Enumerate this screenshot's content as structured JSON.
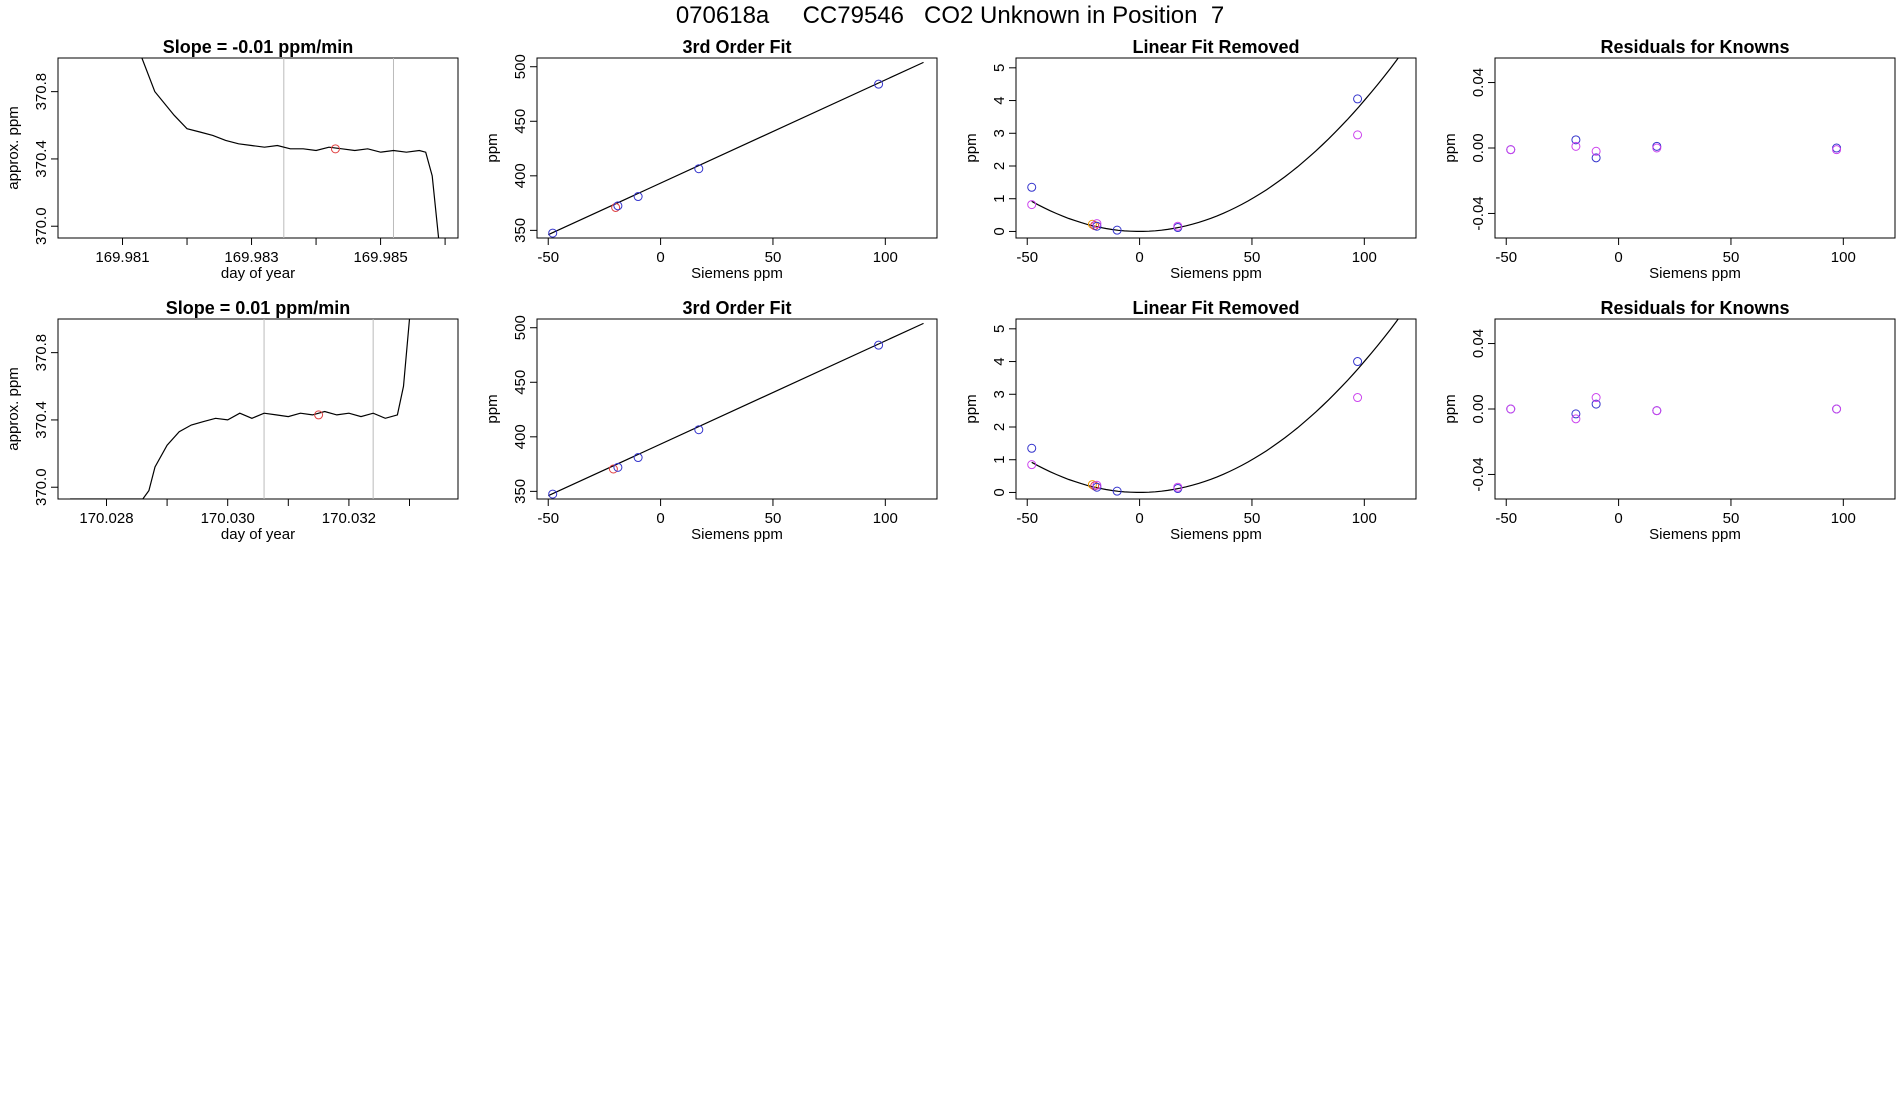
{
  "figure_header": "070618a     CC79546   CO2 Unknown in Position  7",
  "colors": {
    "line": "#000000",
    "point_blue": "#3333cc",
    "point_red": "#e04040",
    "point_magenta": "#cc44ee",
    "point_orange": "#ee9900",
    "vline": "#bbbbbb"
  },
  "chart_data": [
    {
      "type": "line",
      "title": "Slope =  -0.01  ppm/min",
      "xlabel": "day of year",
      "ylabel": "approx. ppm",
      "xlim": [
        169.98,
        169.9862
      ],
      "ylim": [
        369.93,
        371.0
      ],
      "xticks": [
        "169.981",
        "169.983",
        "169.985"
      ],
      "xtick_values": [
        169.981,
        169.983,
        169.985
      ],
      "xtick_minor": [
        169.982,
        169.984,
        169.986
      ],
      "yticks": [
        "370.0",
        "370.4",
        "370.8"
      ],
      "ytick_values": [
        370.0,
        370.4,
        370.8
      ],
      "vlines": [
        169.9835,
        169.9852
      ],
      "marker": {
        "x": 169.9843,
        "y": 370.46,
        "color": "red"
      },
      "series": {
        "x": [
          169.9813,
          169.9815,
          169.9818,
          169.982,
          169.9822,
          169.9824,
          169.9826,
          169.9828,
          169.983,
          169.9832,
          169.9834,
          169.9836,
          169.9838,
          169.984,
          169.9842,
          169.9844,
          169.9846,
          169.9848,
          169.985,
          169.9852,
          169.9854,
          169.9856,
          169.9857,
          169.9858,
          169.9859
        ],
        "y": [
          371.0,
          370.8,
          370.66,
          370.58,
          370.56,
          370.54,
          370.51,
          370.49,
          370.48,
          370.47,
          370.48,
          370.46,
          370.46,
          370.45,
          370.47,
          370.46,
          370.45,
          370.46,
          370.44,
          370.45,
          370.44,
          370.45,
          370.44,
          370.3,
          369.93
        ]
      }
    },
    {
      "type": "scatter",
      "title": "3rd Order Fit",
      "xlabel": "Siemens ppm",
      "ylabel": "ppm",
      "xlim": [
        -55,
        123
      ],
      "ylim": [
        343,
        508
      ],
      "xticks": [
        "-50",
        "0",
        "50",
        "100"
      ],
      "xtick_values": [
        -50,
        0,
        50,
        100
      ],
      "yticks": [
        "350",
        "400",
        "450",
        "500"
      ],
      "ytick_values": [
        350,
        400,
        450,
        500
      ],
      "curve": {
        "x": [
          -50,
          117
        ],
        "y": [
          346,
          504
        ]
      },
      "points": [
        {
          "x": -48,
          "y": 347.5,
          "color": "blue"
        },
        {
          "x": -20,
          "y": 371.0,
          "color": "red"
        },
        {
          "x": -19,
          "y": 372.5,
          "color": "blue"
        },
        {
          "x": -10,
          "y": 381.0,
          "color": "blue"
        },
        {
          "x": 17,
          "y": 406.5,
          "color": "blue"
        },
        {
          "x": 97,
          "y": 484.0,
          "color": "blue"
        }
      ]
    },
    {
      "type": "scatter",
      "title": "Linear Fit Removed",
      "xlabel": "Siemens ppm",
      "ylabel": "ppm",
      "xlim": [
        -55,
        123
      ],
      "ylim": [
        -0.2,
        5.3
      ],
      "xticks": [
        "-50",
        "0",
        "50",
        "100"
      ],
      "xtick_values": [
        -50,
        0,
        50,
        100
      ],
      "yticks": [
        "0",
        "1",
        "2",
        "3",
        "4",
        "5"
      ],
      "ytick_values": [
        0,
        1,
        2,
        3,
        4,
        5
      ],
      "curve_coef": [
        0,
        0,
        0.0004
      ],
      "curve_range": [
        -48,
        117
      ],
      "points": [
        {
          "x": -48,
          "y": 1.35,
          "color": "blue"
        },
        {
          "x": -48,
          "y": 0.82,
          "color": "magenta"
        },
        {
          "x": -21,
          "y": 0.22,
          "color": "orange"
        },
        {
          "x": -20,
          "y": 0.18,
          "color": "red"
        },
        {
          "x": -19,
          "y": 0.16,
          "color": "blue"
        },
        {
          "x": -19,
          "y": 0.24,
          "color": "magenta"
        },
        {
          "x": -10,
          "y": 0.04,
          "color": "blue"
        },
        {
          "x": 17,
          "y": 0.12,
          "color": "blue"
        },
        {
          "x": 17,
          "y": 0.16,
          "color": "magenta"
        },
        {
          "x": 97,
          "y": 4.05,
          "color": "blue"
        },
        {
          "x": 97,
          "y": 2.95,
          "color": "magenta"
        }
      ]
    },
    {
      "type": "scatter",
      "title": "Residuals for Knowns",
      "xlabel": "Siemens ppm",
      "ylabel": "ppm",
      "xlim": [
        -55,
        123
      ],
      "ylim": [
        -0.055,
        0.055
      ],
      "xticks": [
        "-50",
        "0",
        "50",
        "100"
      ],
      "xtick_values": [
        -50,
        0,
        50,
        100
      ],
      "yticks": [
        "-0.04",
        "0.00",
        "0.04"
      ],
      "ytick_values": [
        -0.04,
        0.0,
        0.04
      ],
      "points": [
        {
          "x": -48,
          "y": -0.001,
          "color": "blue"
        },
        {
          "x": -48,
          "y": -0.001,
          "color": "magenta"
        },
        {
          "x": -19,
          "y": 0.005,
          "color": "blue"
        },
        {
          "x": -19,
          "y": 0.001,
          "color": "magenta"
        },
        {
          "x": -10,
          "y": -0.006,
          "color": "blue"
        },
        {
          "x": -10,
          "y": -0.002,
          "color": "magenta"
        },
        {
          "x": 17,
          "y": 0.001,
          "color": "blue"
        },
        {
          "x": 17,
          "y": 0.0,
          "color": "magenta"
        },
        {
          "x": 97,
          "y": 0.0,
          "color": "blue"
        },
        {
          "x": 97,
          "y": -0.001,
          "color": "magenta"
        }
      ]
    },
    {
      "type": "line",
      "title": "Slope =  0.01  ppm/min",
      "xlabel": "day of year",
      "ylabel": "approx. ppm",
      "xlim": [
        170.0272,
        170.0338
      ],
      "ylim": [
        369.93,
        371.0
      ],
      "xticks": [
        "170.028",
        "170.030",
        "170.032"
      ],
      "xtick_values": [
        170.028,
        170.03,
        170.032
      ],
      "xtick_minor": [
        170.029,
        170.031,
        170.033
      ],
      "yticks": [
        "370.0",
        "370.4",
        "370.8"
      ],
      "ytick_values": [
        370.0,
        370.4,
        370.8
      ],
      "vlines": [
        170.0306,
        170.0324
      ],
      "marker": {
        "x": 170.0315,
        "y": 370.43,
        "color": "red"
      },
      "series": {
        "x": [
          170.0274,
          170.0286,
          170.0287,
          170.0288,
          170.029,
          170.0292,
          170.0294,
          170.0296,
          170.0298,
          170.03,
          170.0302,
          170.0304,
          170.0306,
          170.0308,
          170.031,
          170.0312,
          170.0314,
          170.0316,
          170.0318,
          170.032,
          170.0322,
          170.0324,
          170.0326,
          170.0328,
          170.0329,
          170.033
        ],
        "y": [
          369.93,
          369.93,
          369.98,
          370.12,
          370.25,
          370.33,
          370.37,
          370.39,
          370.41,
          370.4,
          370.44,
          370.41,
          370.44,
          370.43,
          370.42,
          370.44,
          370.43,
          370.45,
          370.43,
          370.44,
          370.42,
          370.44,
          370.41,
          370.43,
          370.6,
          371.0
        ]
      }
    },
    {
      "type": "scatter",
      "title": "3rd Order Fit",
      "xlabel": "Siemens ppm",
      "ylabel": "ppm",
      "xlim": [
        -55,
        123
      ],
      "ylim": [
        343,
        508
      ],
      "xticks": [
        "-50",
        "0",
        "50",
        "100"
      ],
      "xtick_values": [
        -50,
        0,
        50,
        100
      ],
      "yticks": [
        "350",
        "400",
        "450",
        "500"
      ],
      "ytick_values": [
        350,
        400,
        450,
        500
      ],
      "curve": {
        "x": [
          -50,
          117
        ],
        "y": [
          346,
          504
        ]
      },
      "points": [
        {
          "x": -48,
          "y": 347.5,
          "color": "blue"
        },
        {
          "x": -21,
          "y": 370.5,
          "color": "red"
        },
        {
          "x": -19,
          "y": 372.0,
          "color": "blue"
        },
        {
          "x": -10,
          "y": 381.0,
          "color": "blue"
        },
        {
          "x": 17,
          "y": 406.5,
          "color": "blue"
        },
        {
          "x": 97,
          "y": 484.0,
          "color": "blue"
        }
      ]
    },
    {
      "type": "scatter",
      "title": "Linear Fit Removed",
      "xlabel": "Siemens ppm",
      "ylabel": "ppm",
      "xlim": [
        -55,
        123
      ],
      "ylim": [
        -0.2,
        5.3
      ],
      "xticks": [
        "-50",
        "0",
        "50",
        "100"
      ],
      "xtick_values": [
        -50,
        0,
        50,
        100
      ],
      "yticks": [
        "0",
        "1",
        "2",
        "3",
        "4",
        "5"
      ],
      "ytick_values": [
        0,
        1,
        2,
        3,
        4,
        5
      ],
      "curve_coef": [
        0,
        0,
        0.0004
      ],
      "curve_range": [
        -48,
        117
      ],
      "points": [
        {
          "x": -48,
          "y": 1.35,
          "color": "blue"
        },
        {
          "x": -48,
          "y": 0.85,
          "color": "magenta"
        },
        {
          "x": -21,
          "y": 0.24,
          "color": "orange"
        },
        {
          "x": -20,
          "y": 0.2,
          "color": "red"
        },
        {
          "x": -19,
          "y": 0.16,
          "color": "blue"
        },
        {
          "x": -19,
          "y": 0.22,
          "color": "magenta"
        },
        {
          "x": -10,
          "y": 0.04,
          "color": "blue"
        },
        {
          "x": 17,
          "y": 0.12,
          "color": "blue"
        },
        {
          "x": 17,
          "y": 0.16,
          "color": "magenta"
        },
        {
          "x": 97,
          "y": 4.0,
          "color": "blue"
        },
        {
          "x": 97,
          "y": 2.9,
          "color": "magenta"
        }
      ]
    },
    {
      "type": "scatter",
      "title": "Residuals for Knowns",
      "xlabel": "Siemens ppm",
      "ylabel": "ppm",
      "xlim": [
        -55,
        123
      ],
      "ylim": [
        -0.055,
        0.055
      ],
      "xticks": [
        "-50",
        "0",
        "50",
        "100"
      ],
      "xtick_values": [
        -50,
        0,
        50,
        100
      ],
      "yticks": [
        "-0.04",
        "0.00",
        "0.04"
      ],
      "ytick_values": [
        -0.04,
        0.0,
        0.04
      ],
      "points": [
        {
          "x": -48,
          "y": 0.0,
          "color": "blue"
        },
        {
          "x": -48,
          "y": 0.0,
          "color": "magenta"
        },
        {
          "x": -19,
          "y": -0.003,
          "color": "blue"
        },
        {
          "x": -19,
          "y": -0.006,
          "color": "magenta"
        },
        {
          "x": -10,
          "y": 0.003,
          "color": "blue"
        },
        {
          "x": -10,
          "y": 0.007,
          "color": "magenta"
        },
        {
          "x": 17,
          "y": -0.001,
          "color": "blue"
        },
        {
          "x": 17,
          "y": -0.001,
          "color": "magenta"
        },
        {
          "x": 97,
          "y": 0.0,
          "color": "blue"
        },
        {
          "x": 97,
          "y": 0.0,
          "color": "magenta"
        }
      ]
    }
  ]
}
